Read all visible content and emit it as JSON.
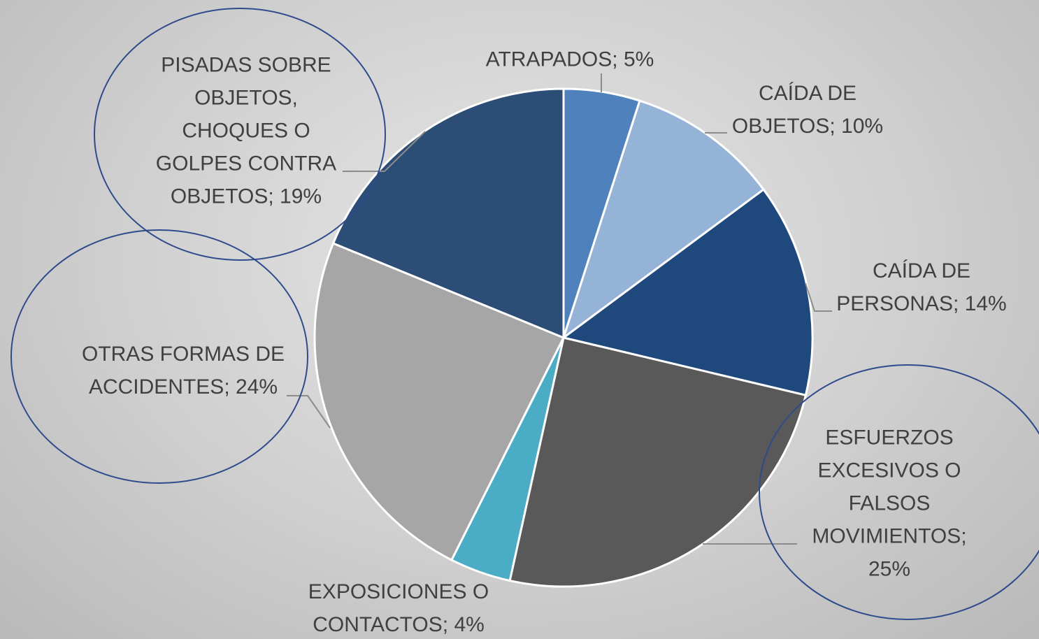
{
  "chart_data": {
    "type": "pie",
    "categories": [
      "ATRAPADOS",
      "CAÍDA DE OBJETOS",
      "CAÍDA DE PERSONAS",
      "ESFUERZOS EXCESIVOS O FALSOS MOVIMIENTOS",
      "EXPOSICIONES O CONTACTOS",
      "OTRAS FORMAS DE ACCIDENTES",
      "PISADAS SOBRE OBJETOS, CHOQUES O GOLPES CONTRA OBJETOS"
    ],
    "values": [
      5,
      10,
      14,
      25,
      4,
      24,
      19
    ],
    "value_labels": [
      "5%",
      "10%",
      "14%",
      "25%",
      "4%",
      "24%",
      "19%"
    ],
    "colors": [
      "#4f81bd",
      "#95b3d7",
      "#1f497d",
      "#595959",
      "#4bacc6",
      "#a6a6a6",
      "#2c4d75"
    ]
  }
}
